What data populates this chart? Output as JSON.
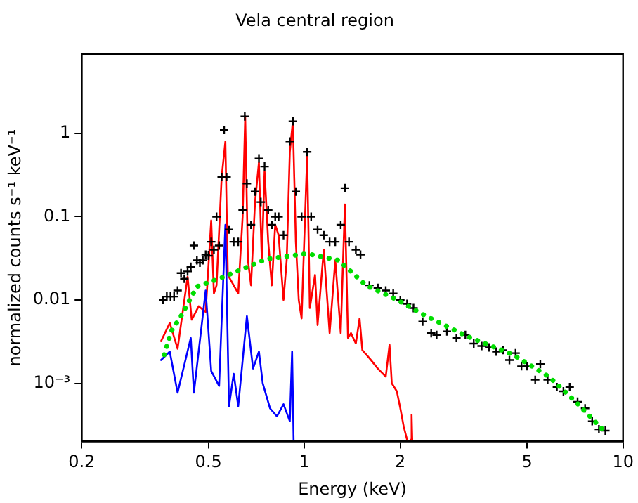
{
  "chart_data": {
    "type": "line",
    "title": "Vela central region",
    "xlabel": "Energy (keV)",
    "ylabel": "normalized counts s⁻¹ keV⁻¹",
    "log": "xy",
    "grid": false,
    "legend": false,
    "xlim": [
      0.2,
      10
    ],
    "xticks": [
      0.2,
      0.5,
      1,
      2,
      5,
      10
    ],
    "ylim": [
      0.0002,
      9
    ],
    "yticks": [
      {
        "value": 0.001,
        "label": "10⁻³"
      },
      0.01,
      0.1,
      1
    ],
    "series": [
      {
        "type": "line",
        "color": "#ff0000",
        "marker": "none",
        "line_style": "solid",
        "x": [
          0.355,
          0.378,
          0.4,
          0.43,
          0.443,
          0.466,
          0.49,
          0.51,
          0.52,
          0.53,
          0.55,
          0.565,
          0.575,
          0.6,
          0.62,
          0.64,
          0.652,
          0.665,
          0.68,
          0.7,
          0.72,
          0.735,
          0.75,
          0.77,
          0.79,
          0.81,
          0.83,
          0.86,
          0.88,
          0.9,
          0.92,
          0.94,
          0.96,
          0.98,
          1.02,
          1.04,
          1.08,
          1.1,
          1.15,
          1.2,
          1.25,
          1.3,
          1.34,
          1.37,
          1.4,
          1.45,
          1.49,
          1.52,
          1.6,
          1.7,
          1.8,
          1.85,
          1.88,
          1.95,
          2.0,
          2.05,
          2.1,
          2.13,
          2.16,
          2.17,
          2.18
        ],
        "values": [
          0.0032,
          0.0053,
          0.0026,
          0.019,
          0.0058,
          0.0084,
          0.0072,
          0.09,
          0.012,
          0.015,
          0.3,
          0.8,
          0.02,
          0.015,
          0.012,
          0.1,
          1.6,
          0.03,
          0.015,
          0.15,
          0.45,
          0.03,
          0.35,
          0.05,
          0.015,
          0.08,
          0.06,
          0.01,
          0.03,
          0.6,
          1.4,
          0.05,
          0.01,
          0.006,
          0.55,
          0.008,
          0.02,
          0.005,
          0.04,
          0.004,
          0.03,
          0.004,
          0.14,
          0.0035,
          0.004,
          0.003,
          0.006,
          0.0025,
          0.002,
          0.0015,
          0.0012,
          0.0029,
          0.001,
          0.0008,
          0.0005,
          0.0003,
          0.00021,
          null,
          0.00021,
          0.00042,
          0.00021
        ]
      },
      {
        "type": "line",
        "color": "#0000ff",
        "marker": "none",
        "line_style": "solid",
        "x": [
          0.355,
          0.378,
          0.4,
          0.44,
          0.45,
          0.49,
          0.51,
          0.54,
          0.565,
          0.58,
          0.6,
          0.62,
          0.66,
          0.69,
          0.72,
          0.74,
          0.78,
          0.82,
          0.86,
          0.9,
          0.915,
          0.925
        ],
        "values": [
          0.0019,
          0.0024,
          0.00077,
          0.0035,
          0.00077,
          0.013,
          0.0014,
          0.00093,
          0.08,
          0.00053,
          0.0013,
          0.00053,
          0.0064,
          0.0015,
          0.0024,
          0.001,
          0.0005,
          0.0004,
          0.00056,
          0.00035,
          0.0024,
          0.00021
        ]
      },
      {
        "type": "scatter",
        "color": "#000000",
        "marker": "cross",
        "x": [
          0.36,
          0.37,
          0.38,
          0.39,
          0.4,
          0.41,
          0.42,
          0.43,
          0.44,
          0.45,
          0.46,
          0.47,
          0.48,
          0.49,
          0.5,
          0.51,
          0.52,
          0.53,
          0.54,
          0.55,
          0.56,
          0.57,
          0.58,
          0.6,
          0.62,
          0.64,
          0.65,
          0.66,
          0.68,
          0.7,
          0.72,
          0.73,
          0.75,
          0.77,
          0.79,
          0.81,
          0.83,
          0.86,
          0.9,
          0.92,
          0.94,
          0.98,
          1.02,
          1.05,
          1.1,
          1.15,
          1.2,
          1.25,
          1.3,
          1.34,
          1.38,
          1.45,
          1.5,
          1.6,
          1.7,
          1.8,
          1.9,
          2.0,
          2.1,
          2.2,
          2.35,
          2.5,
          2.6,
          2.8,
          3.0,
          3.2,
          3.4,
          3.6,
          3.8,
          4.0,
          4.2,
          4.4,
          4.6,
          4.8,
          5.0,
          5.3,
          5.5,
          5.8,
          6.2,
          6.5,
          6.8,
          7.2,
          7.6,
          8.0,
          8.4,
          8.8
        ],
        "values": [
          0.01,
          0.011,
          0.011,
          0.011,
          0.013,
          0.021,
          0.018,
          0.022,
          0.025,
          0.045,
          0.03,
          0.028,
          0.03,
          0.035,
          0.034,
          0.05,
          0.04,
          0.1,
          0.045,
          0.3,
          1.1,
          0.3,
          0.07,
          0.05,
          0.05,
          0.12,
          1.6,
          0.25,
          0.08,
          0.2,
          0.5,
          0.15,
          0.4,
          0.12,
          0.08,
          0.1,
          0.1,
          0.06,
          0.8,
          1.4,
          0.2,
          0.1,
          0.6,
          0.1,
          0.07,
          0.06,
          0.05,
          0.05,
          0.08,
          0.22,
          0.05,
          0.04,
          0.035,
          0.015,
          0.014,
          0.013,
          0.012,
          0.01,
          0.009,
          0.008,
          0.0055,
          0.004,
          0.0038,
          0.0042,
          0.0035,
          0.0038,
          0.003,
          0.0028,
          0.0027,
          0.0024,
          0.0025,
          0.0019,
          0.0023,
          0.0016,
          0.0016,
          0.0011,
          0.0017,
          0.0011,
          0.0009,
          0.0008,
          0.0009,
          0.0006,
          0.0005,
          0.00035,
          0.00028,
          0.00027
        ]
      },
      {
        "type": "line",
        "color": "#00dd00",
        "marker": "none",
        "line_style": "dotted",
        "x": [
          0.363,
          0.382,
          0.41,
          0.46,
          0.54,
          0.63,
          0.76,
          1.02,
          1.28,
          1.56,
          1.96,
          2.32,
          3.22,
          4.52,
          5.85,
          7.1,
          8.7
        ],
        "values": [
          0.0022,
          0.0042,
          0.0064,
          0.0145,
          0.018,
          0.023,
          0.031,
          0.036,
          0.03,
          0.015,
          0.01,
          0.0069,
          0.0037,
          0.0022,
          0.0012,
          0.0006,
          0.00027
        ]
      }
    ]
  }
}
